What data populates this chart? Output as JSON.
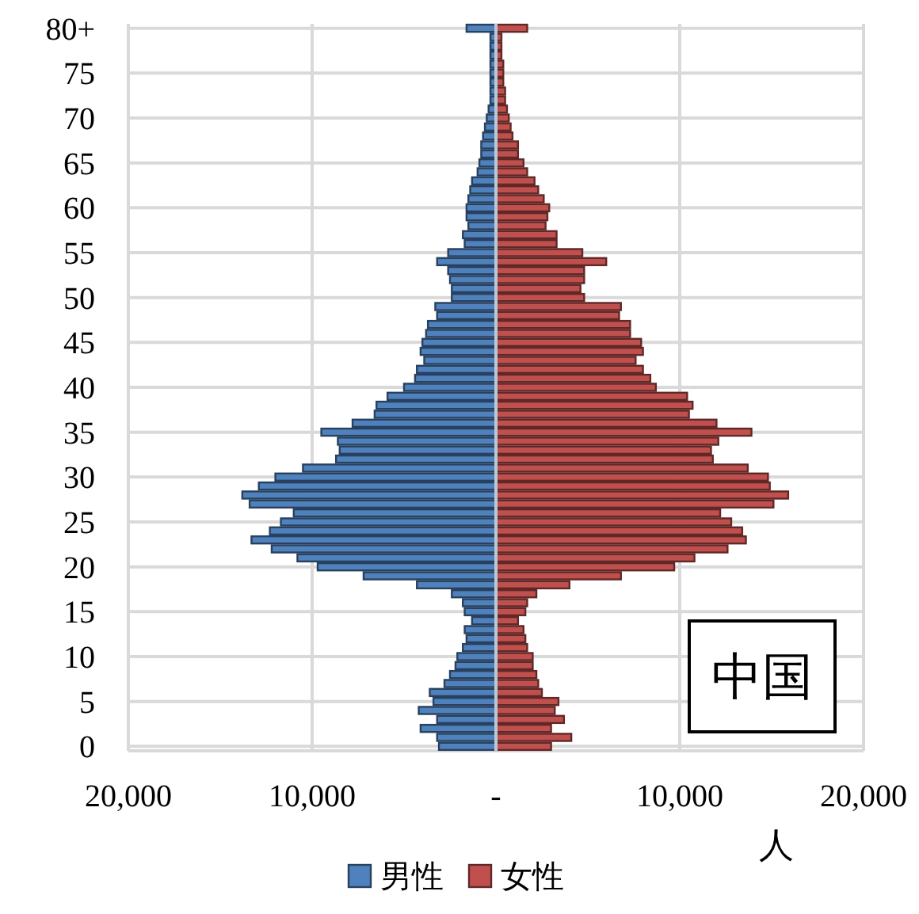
{
  "chart_data": {
    "type": "bar",
    "orientation": "horizontal",
    "stacked": true,
    "xlabel": "人",
    "legend": "bottom",
    "grid": true,
    "categories": [
      "80+",
      null,
      null,
      null,
      null,
      "75",
      null,
      null,
      null,
      null,
      "70",
      null,
      null,
      null,
      null,
      "65",
      null,
      null,
      null,
      null,
      "60",
      null,
      null,
      null,
      null,
      "55",
      null,
      null,
      null,
      null,
      "50",
      null,
      null,
      null,
      null,
      "45",
      null,
      null,
      null,
      null,
      "40",
      null,
      null,
      null,
      null,
      "35",
      null,
      null,
      null,
      null,
      "30",
      null,
      null,
      null,
      null,
      "25",
      null,
      null,
      null,
      null,
      "20",
      null,
      null,
      null,
      null,
      "15",
      null,
      null,
      null,
      null,
      "10",
      null,
      null,
      null,
      null,
      "5",
      null,
      null,
      null,
      null,
      "0"
    ],
    "series": [
      {
        "name": "男性",
        "color": "#4f81bd",
        "values": [
          -1600,
          -300,
          -300,
          -300,
          -300,
          -300,
          -300,
          -300,
          -300,
          -400,
          -500,
          -600,
          -700,
          -800,
          -800,
          -900,
          -1000,
          -1300,
          -1400,
          -1500,
          -1600,
          -1600,
          -1500,
          -1800,
          -1700,
          -2600,
          -3200,
          -2600,
          -2500,
          -2400,
          -2400,
          -3300,
          -3200,
          -3700,
          -3800,
          -4000,
          -4100,
          -3900,
          -4300,
          -4400,
          -5000,
          -5900,
          -6500,
          -6600,
          -7800,
          -9500,
          -8600,
          -8500,
          -8700,
          -10500,
          -12000,
          -12900,
          -13800,
          -13400,
          -11000,
          -11700,
          -12300,
          -13300,
          -12200,
          -10800,
          -9700,
          -7200,
          -4300,
          -2400,
          -1800,
          -1700,
          -1300,
          -1700,
          -1600,
          -1800,
          -2100,
          -2200,
          -2500,
          -2800,
          -3600,
          -3400,
          -4200,
          -3200,
          -4100,
          -3200,
          -3100
        ]
      },
      {
        "name": "女性",
        "color": "#c0504d",
        "values": [
          1700,
          300,
          300,
          300,
          400,
          400,
          400,
          500,
          500,
          600,
          700,
          800,
          900,
          1200,
          1200,
          1500,
          1700,
          2100,
          2300,
          2600,
          2900,
          2800,
          2700,
          3300,
          3300,
          4700,
          6000,
          4800,
          4800,
          4600,
          4800,
          6800,
          6700,
          7300,
          7300,
          7900,
          8000,
          7600,
          8000,
          8400,
          8700,
          10400,
          10700,
          10500,
          12000,
          13900,
          12100,
          11700,
          11800,
          13700,
          14800,
          14900,
          15900,
          15100,
          12200,
          12800,
          13400,
          13600,
          12600,
          10800,
          9700,
          6800,
          4000,
          2200,
          1700,
          1600,
          1200,
          1500,
          1600,
          1700,
          2000,
          2000,
          2200,
          2300,
          2500,
          3400,
          3200,
          3700,
          3000,
          4100,
          3000
        ]
      }
    ],
    "xlim": [
      -20000,
      20000
    ],
    "xticks": [
      {
        "value": -20000,
        "label": "20,000"
      },
      {
        "value": -10000,
        "label": "10,000"
      },
      {
        "value": 0,
        "label": "-"
      },
      {
        "value": 10000,
        "label": "10,000"
      },
      {
        "value": 20000,
        "label": "20,000"
      }
    ],
    "annotations": [
      "中国"
    ]
  }
}
